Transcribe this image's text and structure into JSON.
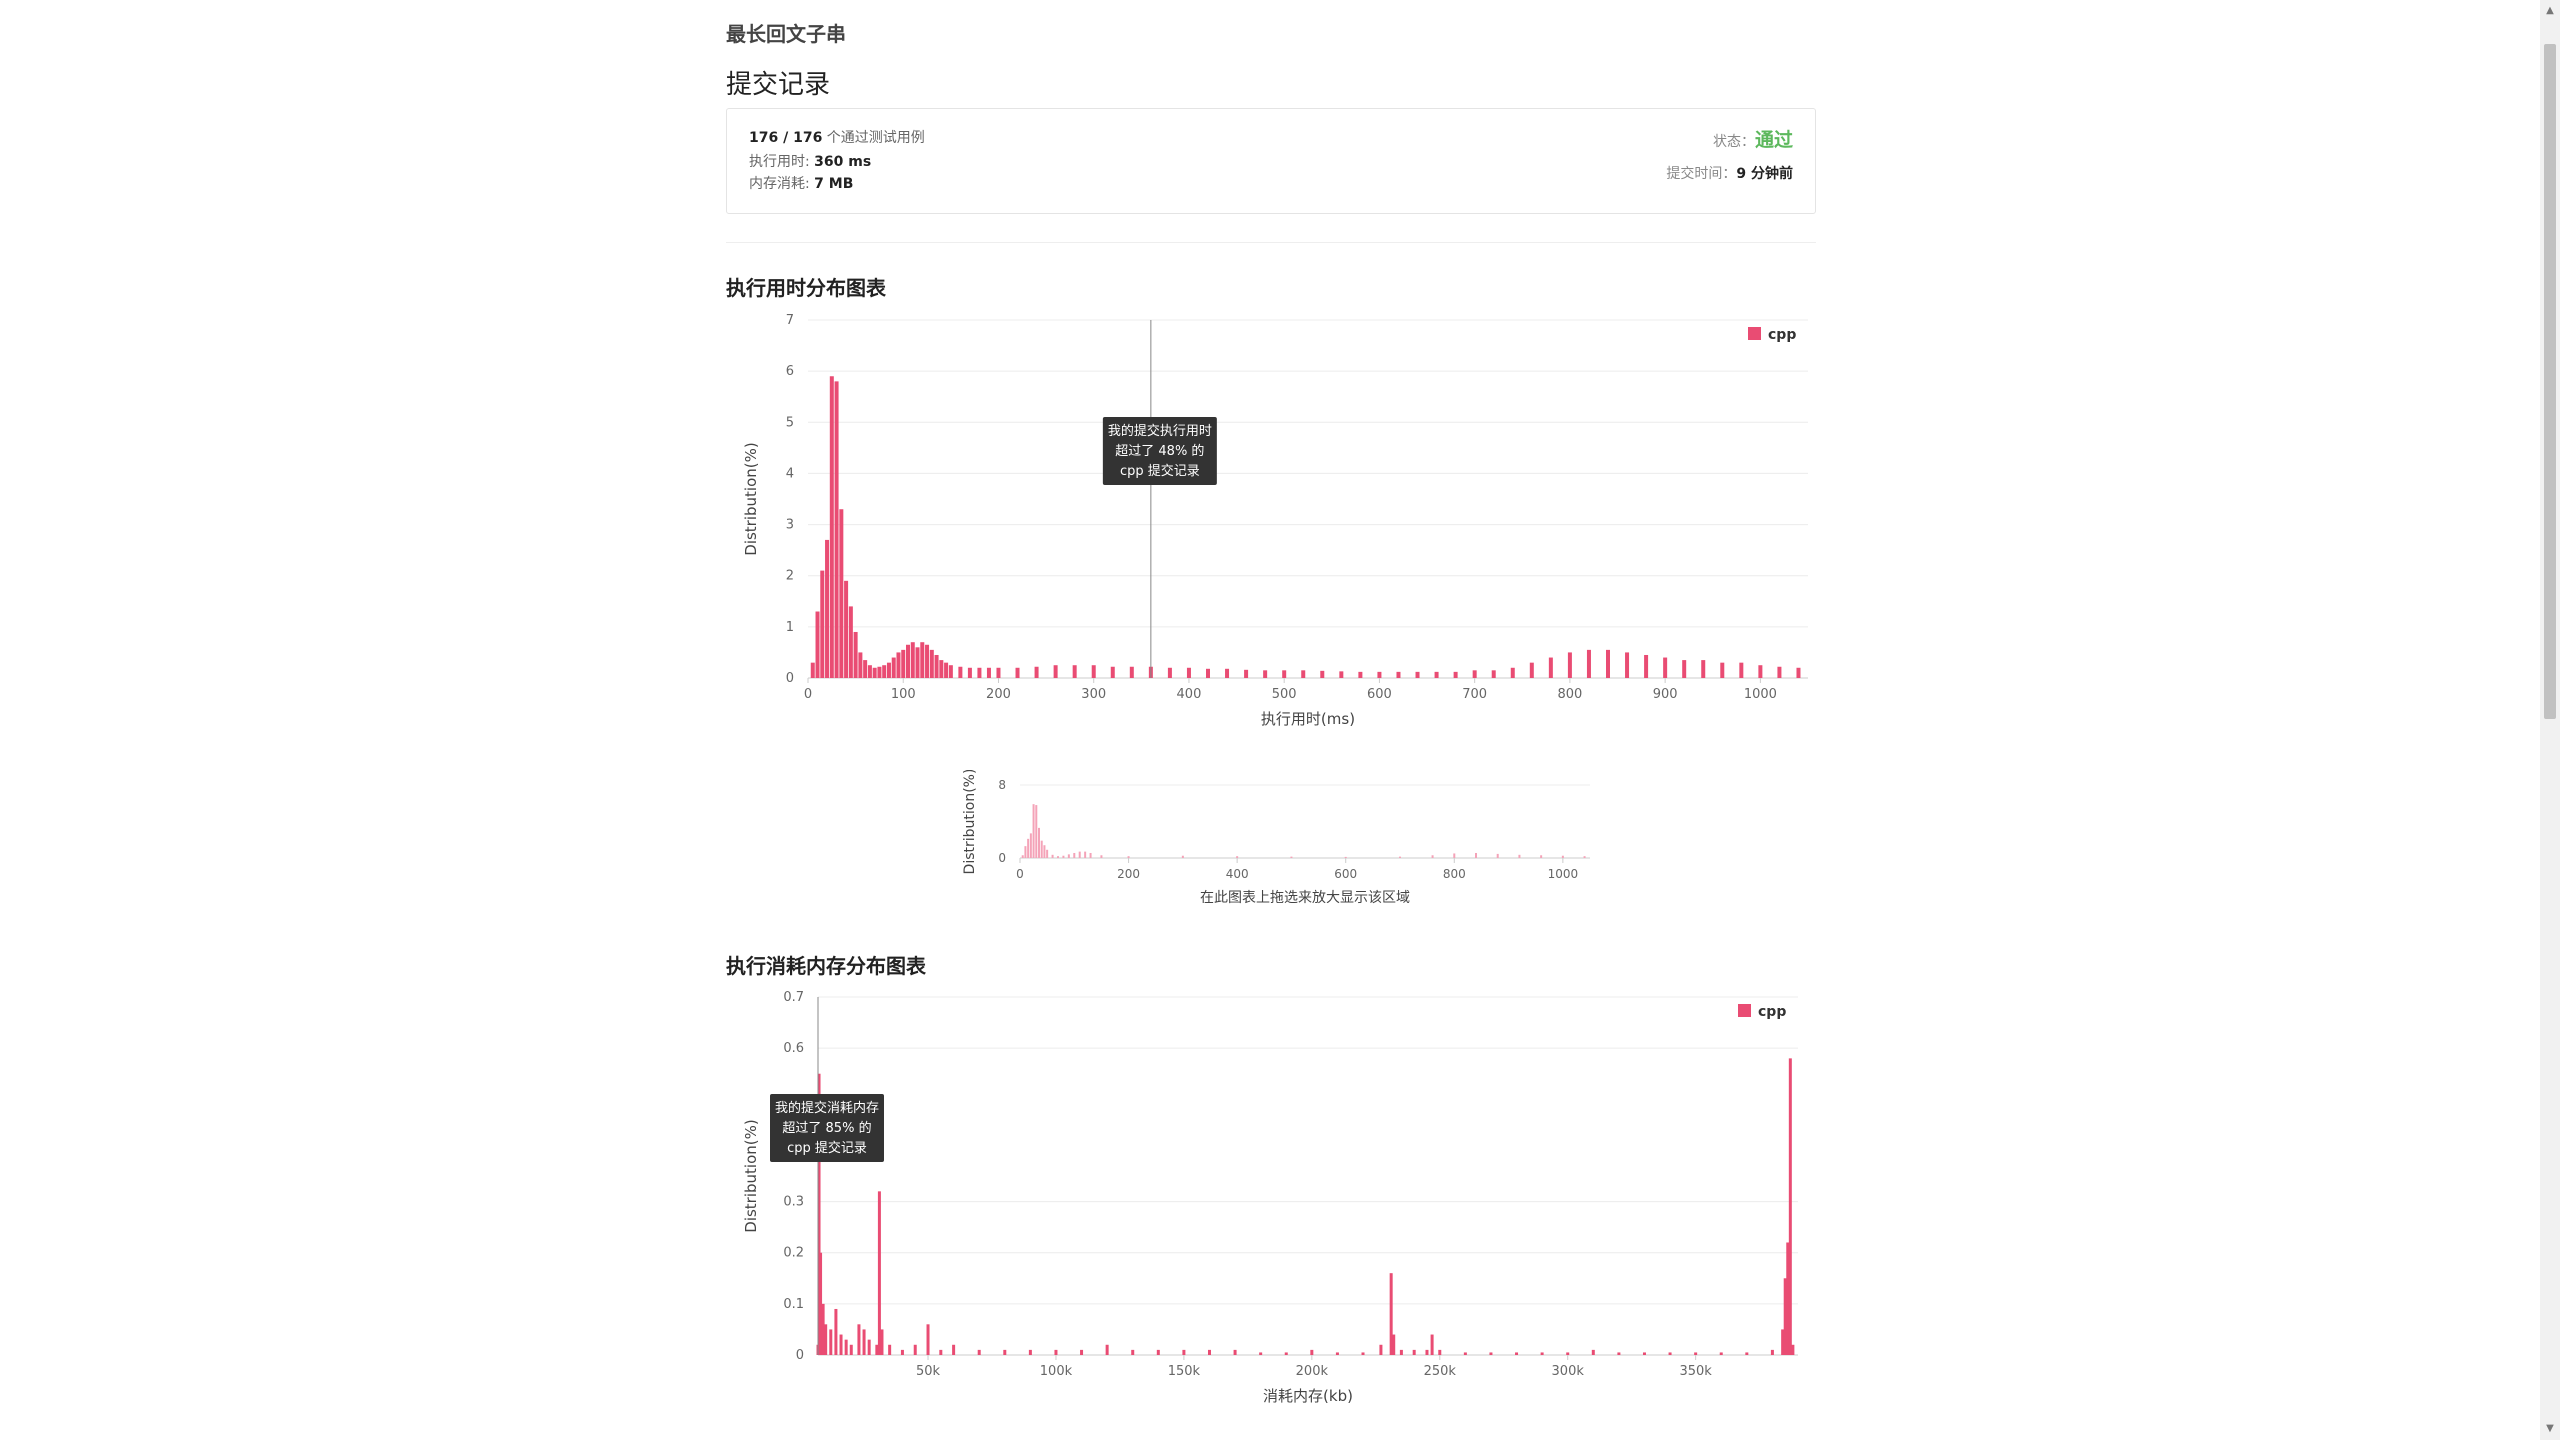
{
  "problem": {
    "title": "最长回文子串"
  },
  "section": {
    "title": "提交记录"
  },
  "summary": {
    "passed": "176 / 176",
    "passed_suffix": "个通过测试用例",
    "runtime_label": "执行用时:",
    "runtime_value": "360 ms",
    "memory_label": "内存消耗:",
    "memory_value": "7 MB",
    "status_label": "状态：",
    "status_value": "通过",
    "submit_label": "提交时间：",
    "submit_value": "9 分钟前"
  },
  "runtime_chart": {
    "heading": "执行用时分布图表",
    "tooltip": [
      "我的提交执行用时",
      "超过了 48% 的",
      "cpp 提交记录"
    ],
    "navigator_caption": "在此图表上拖选来放大显示该区域"
  },
  "memory_chart": {
    "heading": "执行消耗内存分布图表",
    "tooltip": [
      "我的提交消耗内存",
      "超过了 85% 的",
      "cpp 提交记录"
    ]
  },
  "colors": {
    "series": "#e94c73",
    "navigator": "#f4a3b8",
    "status": "#5cb85c"
  },
  "chart_data": [
    {
      "type": "bar",
      "title": "执行用时分布图表",
      "xlabel": "执行用时(ms)",
      "ylabel": "Distribution(%)",
      "xlim": [
        0,
        1050
      ],
      "ylim": [
        0,
        7
      ],
      "xticks": [
        0,
        100,
        200,
        300,
        400,
        500,
        600,
        700,
        800,
        900,
        1000
      ],
      "yticks": [
        0,
        1,
        2,
        3,
        4,
        5,
        6,
        7
      ],
      "marker_x": 360,
      "legend": {
        "position": "top-right",
        "entries": [
          "cpp"
        ]
      },
      "series": [
        {
          "name": "cpp",
          "x": [
            5,
            10,
            15,
            20,
            25,
            30,
            35,
            40,
            45,
            50,
            55,
            60,
            65,
            70,
            75,
            80,
            85,
            90,
            95,
            100,
            105,
            110,
            115,
            120,
            125,
            130,
            135,
            140,
            145,
            150,
            160,
            170,
            180,
            190,
            200,
            220,
            240,
            260,
            280,
            300,
            320,
            340,
            360,
            380,
            400,
            420,
            440,
            460,
            480,
            500,
            520,
            540,
            560,
            580,
            600,
            620,
            640,
            660,
            680,
            700,
            720,
            740,
            760,
            780,
            800,
            820,
            840,
            860,
            880,
            900,
            920,
            940,
            960,
            980,
            1000,
            1020,
            1040
          ],
          "values": [
            0.3,
            1.3,
            2.1,
            2.7,
            5.9,
            5.8,
            3.3,
            1.9,
            1.4,
            0.9,
            0.5,
            0.35,
            0.25,
            0.2,
            0.22,
            0.25,
            0.3,
            0.4,
            0.5,
            0.55,
            0.65,
            0.7,
            0.6,
            0.7,
            0.65,
            0.55,
            0.45,
            0.35,
            0.3,
            0.25,
            0.22,
            0.2,
            0.2,
            0.2,
            0.2,
            0.2,
            0.22,
            0.25,
            0.25,
            0.25,
            0.22,
            0.22,
            0.22,
            0.2,
            0.2,
            0.18,
            0.18,
            0.16,
            0.15,
            0.15,
            0.15,
            0.14,
            0.13,
            0.12,
            0.12,
            0.12,
            0.12,
            0.12,
            0.12,
            0.15,
            0.15,
            0.2,
            0.3,
            0.4,
            0.5,
            0.55,
            0.55,
            0.5,
            0.45,
            0.4,
            0.35,
            0.35,
            0.3,
            0.3,
            0.25,
            0.22,
            0.2
          ]
        }
      ]
    },
    {
      "type": "bar",
      "title": "",
      "xlabel": "在此图表上拖选来放大显示该区域",
      "ylabel": "Distribution(%)",
      "xlim": [
        0,
        1050
      ],
      "ylim": [
        0,
        8
      ],
      "xticks": [
        0,
        200,
        400,
        600,
        800,
        1000
      ],
      "yticks": [
        0,
        8
      ],
      "series": [
        {
          "name": "",
          "x": [
            5,
            10,
            15,
            20,
            25,
            30,
            35,
            40,
            45,
            50,
            60,
            70,
            80,
            90,
            100,
            110,
            120,
            130,
            150,
            200,
            300,
            400,
            500,
            600,
            700,
            760,
            800,
            840,
            880,
            920,
            960,
            1000,
            1040
          ],
          "values": [
            0.3,
            1.3,
            2.1,
            2.7,
            5.9,
            5.8,
            3.3,
            1.9,
            1.4,
            0.9,
            0.35,
            0.2,
            0.25,
            0.4,
            0.55,
            0.7,
            0.7,
            0.55,
            0.3,
            0.2,
            0.25,
            0.2,
            0.15,
            0.12,
            0.15,
            0.3,
            0.5,
            0.55,
            0.45,
            0.35,
            0.3,
            0.25,
            0.2
          ]
        }
      ]
    },
    {
      "type": "bar",
      "title": "执行消耗内存分布图表",
      "xlabel": "消耗内存(kb)",
      "ylabel": "Distribution(%)",
      "xlim": [
        7000,
        390000
      ],
      "ylim": [
        0,
        0.7
      ],
      "xticks": [
        50000,
        100000,
        150000,
        200000,
        250000,
        300000,
        350000
      ],
      "xtick_labels": [
        "50k",
        "100k",
        "150k",
        "200k",
        "250k",
        "300k",
        "350k"
      ],
      "yticks": [
        0,
        0.1,
        0.2,
        0.3,
        0.6,
        0.7
      ],
      "marker_x": 7000,
      "legend": {
        "position": "top-right",
        "entries": [
          "cpp"
        ]
      },
      "series": [
        {
          "name": "cpp",
          "x": [
            7000,
            7400,
            8000,
            9000,
            10000,
            12000,
            14000,
            16000,
            18000,
            20000,
            23000,
            25000,
            27000,
            30000,
            31000,
            32000,
            35000,
            40000,
            45000,
            50000,
            55000,
            60000,
            70000,
            80000,
            90000,
            100000,
            110000,
            120000,
            130000,
            140000,
            150000,
            160000,
            170000,
            180000,
            190000,
            200000,
            210000,
            220000,
            227000,
            231000,
            232000,
            235000,
            240000,
            245000,
            247000,
            250000,
            260000,
            270000,
            280000,
            290000,
            300000,
            310000,
            320000,
            330000,
            340000,
            350000,
            360000,
            370000,
            380000,
            384000,
            385000,
            386000,
            387000,
            388000
          ],
          "values": [
            0.02,
            0.55,
            0.2,
            0.1,
            0.06,
            0.05,
            0.09,
            0.04,
            0.03,
            0.02,
            0.06,
            0.05,
            0.03,
            0.02,
            0.32,
            0.05,
            0.02,
            0.01,
            0.02,
            0.06,
            0.01,
            0.02,
            0.01,
            0.01,
            0.01,
            0.01,
            0.01,
            0.02,
            0.01,
            0.01,
            0.01,
            0.01,
            0.01,
            0.005,
            0.005,
            0.01,
            0.005,
            0.005,
            0.02,
            0.16,
            0.04,
            0.01,
            0.01,
            0.01,
            0.04,
            0.01,
            0.005,
            0.005,
            0.005,
            0.005,
            0.005,
            0.01,
            0.005,
            0.005,
            0.005,
            0.005,
            0.005,
            0.005,
            0.01,
            0.05,
            0.15,
            0.22,
            0.58,
            0.02
          ]
        }
      ]
    }
  ]
}
